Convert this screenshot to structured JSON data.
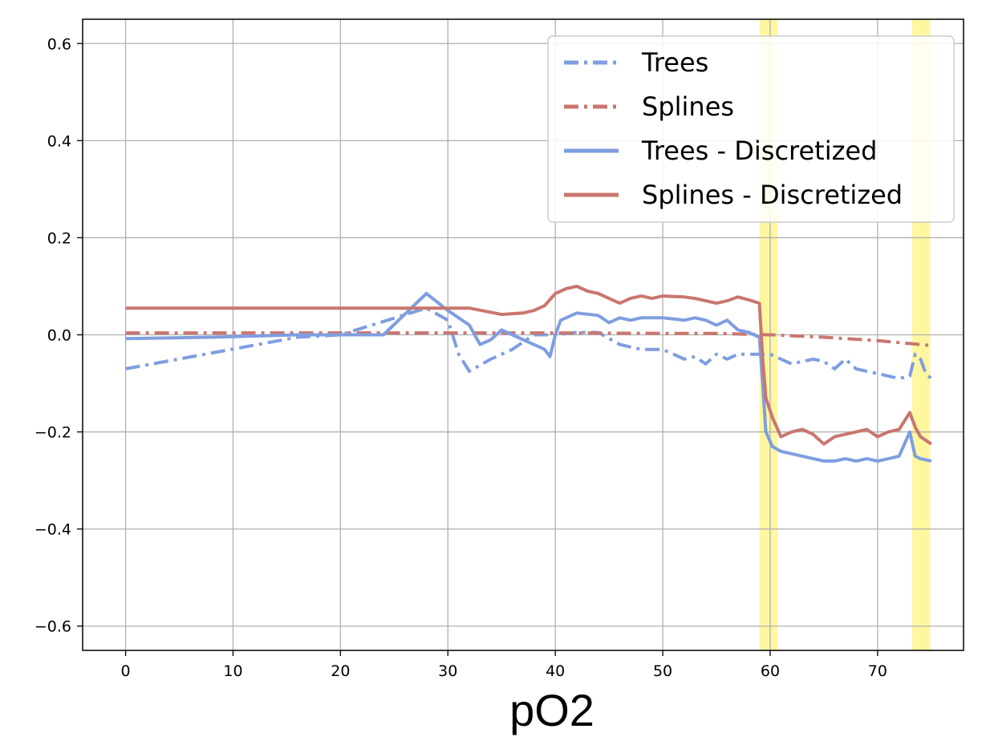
{
  "chart_data": {
    "type": "line",
    "title": "",
    "xlabel": "pO2",
    "ylabel": "",
    "xlim": [
      -4,
      78
    ],
    "ylim": [
      -0.65,
      0.65
    ],
    "xticks": [
      0,
      10,
      20,
      30,
      40,
      50,
      60,
      70
    ],
    "xtick_labels": [
      "0",
      "10",
      "20",
      "30",
      "40",
      "50",
      "60",
      "70"
    ],
    "yticks": [
      -0.6,
      -0.4,
      -0.2,
      0.0,
      0.2,
      0.4,
      0.6
    ],
    "ytick_labels": [
      "−0.6",
      "−0.4",
      "−0.2",
      "0.0",
      "0.2",
      "0.4",
      "0.6"
    ],
    "grid": true,
    "legend_position": "top-right",
    "highlight_regions": [
      {
        "x0": 59.0,
        "x1": 60.7,
        "color": "#fff7a0"
      },
      {
        "x0": 73.2,
        "x1": 74.9,
        "color": "#fff7a0"
      }
    ],
    "series": [
      {
        "name": "Trees",
        "style": "dashdot",
        "color": "#7f9ee0",
        "points": [
          [
            0,
            -0.07
          ],
          [
            16,
            -0.005
          ],
          [
            20,
            0.0
          ],
          [
            28,
            0.055
          ],
          [
            30,
            0.03
          ],
          [
            31,
            -0.04
          ],
          [
            32,
            -0.075
          ],
          [
            34,
            -0.05
          ],
          [
            36,
            -0.03
          ],
          [
            38,
            0.0
          ],
          [
            40,
            0.0
          ],
          [
            42,
            0.005
          ],
          [
            44,
            0.005
          ],
          [
            46,
            -0.02
          ],
          [
            48,
            -0.03
          ],
          [
            50,
            -0.03
          ],
          [
            51,
            -0.04
          ],
          [
            52,
            -0.05
          ],
          [
            53,
            -0.045
          ],
          [
            54,
            -0.06
          ],
          [
            55,
            -0.04
          ],
          [
            56,
            -0.05
          ],
          [
            57,
            -0.04
          ],
          [
            58,
            -0.04
          ],
          [
            59,
            -0.04
          ],
          [
            60,
            -0.04
          ],
          [
            61,
            -0.05
          ],
          [
            62,
            -0.06
          ],
          [
            64,
            -0.05
          ],
          [
            65,
            -0.055
          ],
          [
            66,
            -0.07
          ],
          [
            67,
            -0.05
          ],
          [
            68,
            -0.07
          ],
          [
            70,
            -0.08
          ],
          [
            72,
            -0.09
          ],
          [
            73,
            -0.085
          ],
          [
            73.5,
            -0.04
          ],
          [
            74,
            -0.05
          ],
          [
            74.5,
            -0.08
          ],
          [
            75,
            -0.09
          ]
        ]
      },
      {
        "name": "Splines",
        "style": "dashdot",
        "color": "#c9766f",
        "points": [
          [
            0,
            0.004
          ],
          [
            10,
            0.004
          ],
          [
            20,
            0.004
          ],
          [
            30,
            0.004
          ],
          [
            40,
            0.004
          ],
          [
            50,
            0.003
          ],
          [
            55,
            0.003
          ],
          [
            60,
            0.0
          ],
          [
            65,
            -0.005
          ],
          [
            70,
            -0.012
          ],
          [
            73,
            -0.018
          ],
          [
            75,
            -0.022
          ]
        ]
      },
      {
        "name": "Trees - Discretized",
        "style": "solid",
        "color": "#7f9ee0",
        "points": [
          [
            0,
            -0.008
          ],
          [
            8,
            -0.005
          ],
          [
            16,
            0.0
          ],
          [
            24,
            0.0
          ],
          [
            28,
            0.085
          ],
          [
            30,
            0.05
          ],
          [
            32,
            0.02
          ],
          [
            33,
            -0.02
          ],
          [
            34,
            -0.01
          ],
          [
            35,
            0.01
          ],
          [
            36,
            0.0
          ],
          [
            37,
            -0.01
          ],
          [
            38,
            -0.02
          ],
          [
            39,
            -0.03
          ],
          [
            39.5,
            -0.045
          ],
          [
            40,
            0.0
          ],
          [
            40.5,
            0.03
          ],
          [
            42,
            0.045
          ],
          [
            44,
            0.04
          ],
          [
            45,
            0.025
          ],
          [
            46,
            0.035
          ],
          [
            47,
            0.03
          ],
          [
            48,
            0.035
          ],
          [
            50,
            0.035
          ],
          [
            52,
            0.03
          ],
          [
            53,
            0.035
          ],
          [
            54,
            0.03
          ],
          [
            55,
            0.02
          ],
          [
            56,
            0.03
          ],
          [
            57,
            0.01
          ],
          [
            58,
            0.005
          ],
          [
            59,
            -0.005
          ],
          [
            59.3,
            -0.1
          ],
          [
            59.6,
            -0.2
          ],
          [
            60.2,
            -0.23
          ],
          [
            61,
            -0.24
          ],
          [
            62,
            -0.245
          ],
          [
            63,
            -0.25
          ],
          [
            64,
            -0.255
          ],
          [
            65,
            -0.26
          ],
          [
            66,
            -0.26
          ],
          [
            67,
            -0.255
          ],
          [
            68,
            -0.26
          ],
          [
            69,
            -0.255
          ],
          [
            70,
            -0.26
          ],
          [
            71,
            -0.255
          ],
          [
            72,
            -0.25
          ],
          [
            73,
            -0.2
          ],
          [
            73.5,
            -0.25
          ],
          [
            74,
            -0.255
          ],
          [
            75,
            -0.26
          ]
        ]
      },
      {
        "name": "Splines - Discretized",
        "style": "solid",
        "color": "#c9766f",
        "points": [
          [
            0,
            0.055
          ],
          [
            10,
            0.055
          ],
          [
            20,
            0.055
          ],
          [
            28,
            0.055
          ],
          [
            32,
            0.055
          ],
          [
            35,
            0.042
          ],
          [
            37,
            0.045
          ],
          [
            38,
            0.05
          ],
          [
            39,
            0.06
          ],
          [
            40,
            0.085
          ],
          [
            41,
            0.095
          ],
          [
            42,
            0.1
          ],
          [
            43,
            0.09
          ],
          [
            44,
            0.085
          ],
          [
            45,
            0.075
          ],
          [
            46,
            0.065
          ],
          [
            47,
            0.075
          ],
          [
            48,
            0.08
          ],
          [
            49,
            0.075
          ],
          [
            50,
            0.08
          ],
          [
            52,
            0.078
          ],
          [
            53,
            0.075
          ],
          [
            54,
            0.07
          ],
          [
            55,
            0.065
          ],
          [
            56,
            0.07
          ],
          [
            57,
            0.078
          ],
          [
            58,
            0.072
          ],
          [
            59,
            0.065
          ],
          [
            59.3,
            -0.05
          ],
          [
            59.6,
            -0.13
          ],
          [
            60.2,
            -0.17
          ],
          [
            61,
            -0.21
          ],
          [
            62,
            -0.2
          ],
          [
            63,
            -0.195
          ],
          [
            64,
            -0.205
          ],
          [
            65,
            -0.225
          ],
          [
            66,
            -0.21
          ],
          [
            67,
            -0.205
          ],
          [
            68,
            -0.2
          ],
          [
            69,
            -0.195
          ],
          [
            70,
            -0.21
          ],
          [
            71,
            -0.2
          ],
          [
            72,
            -0.195
          ],
          [
            73,
            -0.16
          ],
          [
            73.5,
            -0.19
          ],
          [
            74,
            -0.21
          ],
          [
            75,
            -0.225
          ]
        ]
      }
    ]
  }
}
